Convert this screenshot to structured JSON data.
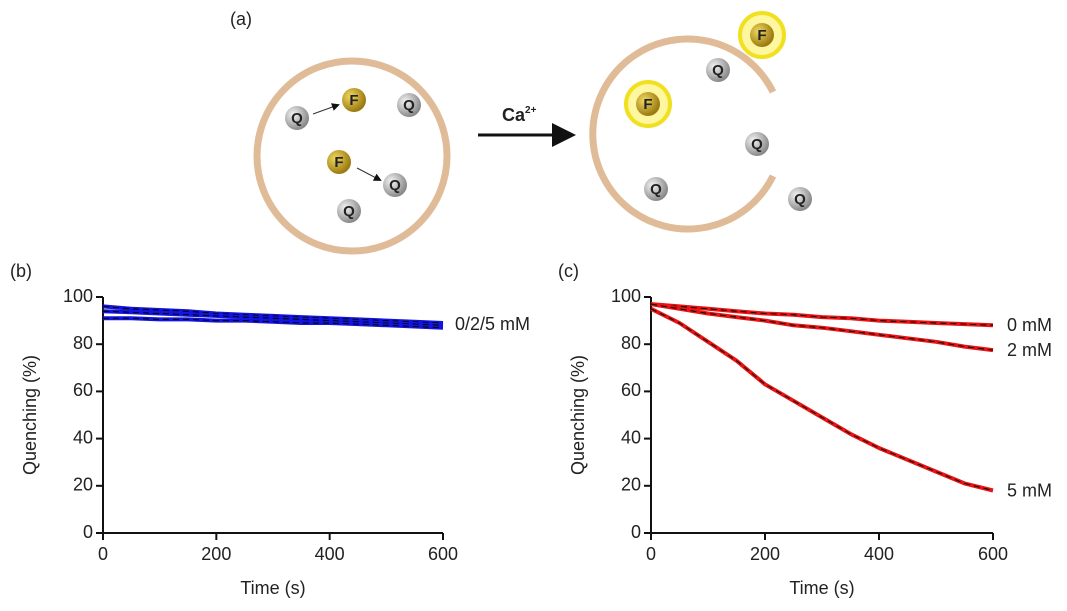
{
  "diagram": {
    "label": "(a)",
    "arrow_label": "Ca",
    "arrow_label_superscript": "2+",
    "nodes": [
      "Q",
      "F",
      "Q",
      "F",
      "Q",
      "Q",
      "F",
      "Q",
      "F",
      "Q",
      "Q",
      "Q"
    ]
  },
  "chart_data": [
    {
      "type": "line",
      "panel_label": "(b)",
      "xlabel": "Time (s)",
      "ylabel": "Quenching (%)",
      "annotation": "0/2/5 mM",
      "fit_color": "#000000",
      "x": [
        0,
        50,
        100,
        150,
        200,
        250,
        300,
        350,
        400,
        450,
        500,
        550,
        600
      ],
      "series": [
        {
          "color": "#1414e0",
          "values": [
            96,
            95,
            94.5,
            94,
            93,
            92.5,
            92,
            91.5,
            91,
            90.5,
            90,
            89.5,
            89
          ]
        },
        {
          "color": "#1414e0",
          "values": [
            94,
            93.5,
            93,
            92.5,
            92,
            91.5,
            91,
            90.5,
            90,
            89.5,
            89,
            88.5,
            88
          ]
        },
        {
          "color": "#1414e0",
          "values": [
            91,
            91,
            90.5,
            90.5,
            90,
            90,
            89.5,
            89,
            89,
            88.5,
            88,
            87.5,
            87
          ]
        }
      ],
      "xlim": [
        0,
        600
      ],
      "xticks": [
        0,
        200,
        400,
        600
      ],
      "ylim": [
        0,
        100
      ],
      "yticks": [
        0,
        20,
        40,
        60,
        80,
        100
      ]
    },
    {
      "type": "line",
      "panel_label": "(c)",
      "xlabel": "Time (s)",
      "ylabel": "Quenching (%)",
      "fit_color": "#000000",
      "x": [
        0,
        50,
        100,
        150,
        200,
        250,
        300,
        350,
        400,
        450,
        500,
        550,
        600
      ],
      "series": [
        {
          "name": "0 mM",
          "color": "#e81414",
          "values": [
            97,
            96,
            95,
            94,
            93,
            92.5,
            91.5,
            91,
            90,
            89.5,
            89,
            88.5,
            88
          ]
        },
        {
          "name": "2 mM",
          "color": "#e81414",
          "values": [
            97,
            95,
            93,
            91.5,
            90,
            88,
            87,
            85.5,
            84,
            82.5,
            81,
            79,
            77.5
          ]
        },
        {
          "name": "5 mM",
          "color": "#e81414",
          "values": [
            95,
            89,
            81,
            73,
            63,
            56,
            49,
            42,
            36,
            31,
            26,
            21,
            18
          ]
        }
      ],
      "xlim": [
        0,
        600
      ],
      "xticks": [
        0,
        200,
        400,
        600
      ],
      "ylim": [
        0,
        100
      ],
      "yticks": [
        0,
        20,
        40,
        60,
        80,
        100
      ]
    }
  ]
}
